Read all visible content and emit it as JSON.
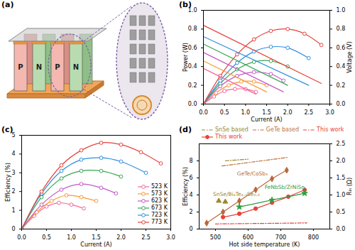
{
  "chart_data": [
    {
      "type": "diagram",
      "title": "(a)",
      "legs": [
        "P",
        "N",
        "P",
        "N"
      ]
    },
    {
      "type": "line",
      "title": "(b)",
      "x_label": "Current (A)",
      "y_label": "Power (W)",
      "y2_label": "Voltage (V)",
      "xlim": [
        0,
        3
      ],
      "xticks": [
        {
          "value": 0,
          "label": "0.0"
        },
        {
          "value": 0.5,
          "label": "0.5"
        },
        {
          "value": 1,
          "label": "1.0"
        },
        {
          "value": 1.5,
          "label": "1.5"
        },
        {
          "value": 2,
          "label": "2.0"
        },
        {
          "value": 2.5,
          "label": "2.5"
        },
        {
          "value": 3,
          "label": "3.0"
        }
      ],
      "ylim": [
        0,
        1
      ],
      "yticks": [
        {
          "value": 0,
          "label": "0.0"
        },
        0.2,
        0.4,
        0.6,
        0.8,
        {
          "value": 1,
          "label": "1.0"
        }
      ],
      "y2lim": [
        0,
        1
      ],
      "y2ticks": [
        {
          "value": 0,
          "label": "0.0"
        },
        0.2,
        0.4,
        0.6,
        0.8,
        {
          "value": 1,
          "label": "1.0"
        }
      ],
      "series": [
        {
          "color": "#f5679a",
          "marker": "circle-open",
          "x": [
            0,
            0.25,
            0.5,
            0.75,
            1.0,
            1.25
          ],
          "values": [
            0,
            0.08,
            0.14,
            0.16,
            0.16,
            0.13
          ]
        },
        {
          "color": "#f59a3c",
          "marker": "circle-open",
          "x": [
            0,
            0.3,
            0.6,
            0.9,
            1.2,
            1.5
          ],
          "values": [
            0,
            0.12,
            0.2,
            0.24,
            0.24,
            0.2
          ]
        },
        {
          "color": "#c45ac8",
          "marker": "circle-open",
          "x": [
            0,
            0.4,
            0.8,
            1.2,
            1.6,
            1.9
          ],
          "values": [
            0,
            0.19,
            0.3,
            0.34,
            0.32,
            0.25
          ]
        },
        {
          "color": "#3aa655",
          "marker": "circle-open",
          "x": [
            0,
            0.4,
            0.8,
            1.2,
            1.6,
            2.0
          ],
          "values": [
            0,
            0.22,
            0.37,
            0.45,
            0.46,
            0.4
          ]
        },
        {
          "color": "#2f8fde",
          "marker": "circle-open",
          "x": [
            0,
            0.4,
            0.8,
            1.2,
            1.6,
            2.0,
            2.5
          ],
          "values": [
            0,
            0.25,
            0.44,
            0.56,
            0.61,
            0.6,
            0.49
          ]
        },
        {
          "color": "#e8413a",
          "marker": "circle-open",
          "x": [
            0,
            0.4,
            0.8,
            1.2,
            1.6,
            2.0,
            2.4,
            2.8
          ],
          "values": [
            0,
            0.3,
            0.53,
            0.69,
            0.78,
            0.8,
            0.75,
            0.63
          ]
        },
        {
          "color": "#f5679a",
          "axis": "y2",
          "x": [
            0,
            1.25
          ],
          "values": [
            0.38,
            0.105
          ]
        },
        {
          "color": "#f59a3c",
          "axis": "y2",
          "x": [
            0,
            1.5
          ],
          "values": [
            0.46,
            0.13
          ]
        },
        {
          "color": "#c45ac8",
          "axis": "y2",
          "x": [
            0,
            1.9
          ],
          "values": [
            0.55,
            0.13
          ]
        },
        {
          "color": "#3aa655",
          "axis": "y2",
          "x": [
            0,
            2.0
          ],
          "values": [
            0.64,
            0.2
          ]
        },
        {
          "color": "#2f8fde",
          "axis": "y2",
          "x": [
            0,
            2.5
          ],
          "values": [
            0.72,
            0.2
          ]
        },
        {
          "color": "#e8413a",
          "axis": "y2",
          "x": [
            0,
            2.8
          ],
          "values": [
            0.84,
            0.22
          ]
        }
      ]
    },
    {
      "type": "line",
      "title": "(c)",
      "x_label": "Current (A)",
      "y_label": "Efficiency (%)",
      "xlim": [
        0,
        3
      ],
      "xticks": [
        {
          "value": 0,
          "label": "0.0"
        },
        {
          "value": 0.5,
          "label": "0.5"
        },
        {
          "value": 1,
          "label": "1.0"
        },
        {
          "value": 1.5,
          "label": "1.5"
        },
        {
          "value": 2,
          "label": "2.0"
        },
        {
          "value": 2.5,
          "label": "2.5"
        },
        {
          "value": 3,
          "label": "3.0"
        }
      ],
      "ylim": [
        0,
        5
      ],
      "yticks": [
        0,
        1,
        2,
        3,
        4,
        5
      ],
      "legend": "lower right",
      "series": [
        {
          "name": "523 K",
          "color": "#f5679a",
          "marker": "circle-open",
          "x": [
            0,
            0.25,
            0.5,
            0.75,
            1.0,
            1.25
          ],
          "values": [
            0,
            0.7,
            1.2,
            1.4,
            1.3,
            1.1
          ]
        },
        {
          "name": "573 K",
          "color": "#f59a3c",
          "marker": "circle-open",
          "x": [
            0,
            0.3,
            0.6,
            0.9,
            1.2,
            1.5
          ],
          "values": [
            0,
            0.9,
            1.5,
            1.8,
            1.7,
            1.5
          ]
        },
        {
          "name": "623 K",
          "color": "#c45ac8",
          "marker": "circle-open",
          "x": [
            0,
            0.4,
            0.8,
            1.2,
            1.6,
            1.9
          ],
          "values": [
            0,
            1.3,
            2.1,
            2.4,
            2.2,
            1.9
          ]
        },
        {
          "name": "673 K",
          "color": "#3aa655",
          "marker": "circle-open",
          "x": [
            0,
            0.4,
            0.8,
            1.2,
            1.6,
            2.0
          ],
          "values": [
            0,
            1.7,
            2.7,
            3.1,
            3.1,
            2.8
          ]
        },
        {
          "name": "723 K",
          "color": "#2f8fde",
          "marker": "circle-open",
          "x": [
            0,
            0.4,
            0.8,
            1.2,
            1.6,
            2.0,
            2.5
          ],
          "values": [
            0,
            1.9,
            3.1,
            3.7,
            3.8,
            3.6,
            3.0
          ]
        },
        {
          "name": "773 K",
          "color": "#e8413a",
          "marker": "circle-open",
          "x": [
            0,
            0.4,
            0.8,
            1.2,
            1.6,
            2.0,
            2.4,
            2.8
          ],
          "values": [
            0,
            2.0,
            3.4,
            4.2,
            4.6,
            4.5,
            4.1,
            3.5
          ]
        }
      ]
    },
    {
      "type": "line",
      "title": "(d)",
      "x_label": "Hot side temperature (K)",
      "y_label": "Efficiency (%)",
      "y2_label": "Rᵢₙ (Ω)",
      "xlim": [
        450,
        850
      ],
      "xticks": [
        500,
        600,
        700,
        800
      ],
      "ylim": [
        0,
        10
      ],
      "yticks": [
        0,
        2,
        4,
        6,
        8
      ],
      "y2lim": [
        0,
        2.5
      ],
      "y2ticks": [
        {
          "value": 0,
          "label": "0.0"
        },
        0.5,
        {
          "value": 1,
          "label": "1.0"
        },
        1.5,
        {
          "value": 2,
          "label": "2.0"
        },
        2.5
      ],
      "legend": "top",
      "series": [
        {
          "name": "This work",
          "color": "#e8413a",
          "marker": "circle",
          "x": [
            523,
            573,
            623,
            673,
            723,
            773
          ],
          "values": [
            1.4,
            1.8,
            2.4,
            3.1,
            3.8,
            4.6
          ]
        },
        {
          "name": "GeTe/CoSb₃",
          "color": "#b8693a",
          "marker": "diamond",
          "x": [
            473,
            523,
            573,
            623,
            673,
            718
          ],
          "values": [
            0.7,
            2.0,
            3.3,
            4.6,
            5.9,
            6.9
          ]
        },
        {
          "name": "FeNbSb/ZrNiSn",
          "color": "#2e9e3e",
          "marker": "star",
          "x": [
            573,
            673,
            773
          ],
          "values": [
            2.6,
            3.4,
            4.2
          ]
        },
        {
          "name": "SnSe/Bi₂Te₂.₇Se₀.₃",
          "color": "#9a8a2a",
          "marker": "triangle",
          "type": "scatter",
          "x": [
            510,
            530
          ],
          "values": [
            3.3,
            3.2
          ]
        },
        {
          "name": "SnSe based",
          "color": "#9a8a2a",
          "axis": "y2",
          "line_style": "dashdot",
          "x": [
            530,
            600
          ],
          "values": [
            2.0,
            2.05
          ]
        },
        {
          "name": "GeTe based",
          "color": "#c0703a",
          "axis": "y2",
          "line_style": "dashdot",
          "x": [
            520,
            720
          ],
          "values": [
            1.85,
            2.1
          ]
        },
        {
          "name": "This work",
          "color": "#e8413a",
          "axis": "y2",
          "line_style": "dashdot",
          "x": [
            500,
            780
          ],
          "values": [
            0.15,
            0.18
          ]
        }
      ]
    }
  ]
}
